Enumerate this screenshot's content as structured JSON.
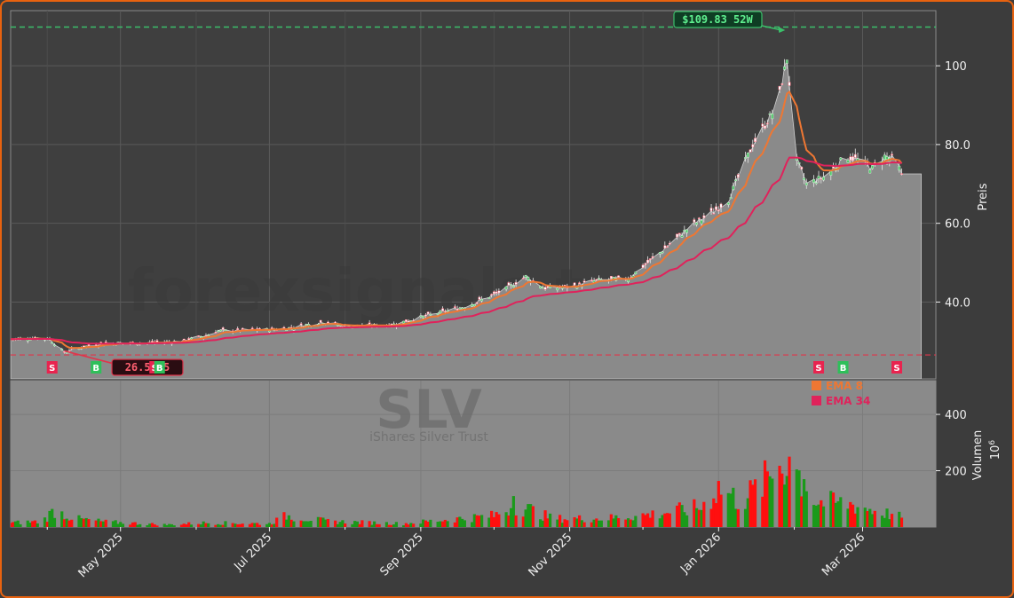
{
  "chart_data": {
    "type": "candlestick-with-volume",
    "watermark": {
      "brand": "forexsignals.trade",
      "ticker": "SLV",
      "name": "iShares Silver Trust"
    },
    "price_axis": {
      "label": "Preis",
      "ylim": [
        20.5,
        114
      ],
      "ticks": [
        40,
        60,
        80,
        100
      ],
      "tick_labels": [
        "40.0",
        "60.0",
        "80.0",
        "100"
      ]
    },
    "volume_axis": {
      "label": "Volumen",
      "unit_exponent": "10",
      "unit_power": "6",
      "ylim": [
        0,
        520
      ],
      "ticks": [
        200,
        400
      ],
      "tick_labels": [
        "200",
        "400"
      ]
    },
    "x_axis": {
      "start": "2025-03-17",
      "end": "2026-03-31",
      "tick_dates": [
        "2025-05-01",
        "2025-07-01",
        "2025-09-01",
        "2025-11-01",
        "2026-01-01",
        "2026-03-01"
      ],
      "tick_labels": [
        "May 2025",
        "Jul 2025",
        "Sep 2025",
        "Nov 2025",
        "Jan 2026",
        "Mar 2026"
      ]
    },
    "grid": true,
    "legend": {
      "position": "top-center",
      "items": [
        {
          "name": "EMA 8",
          "color": "#ee7733"
        },
        {
          "name": "EMA 34",
          "color": "#e0225b"
        }
      ]
    },
    "high_line": {
      "value": 109.83,
      "label": "$109.83 52W",
      "date": "2026-01-29",
      "color": "#3bbf6a"
    },
    "low_line": {
      "value": 26.57,
      "label": "26.57 5",
      "date": "2025-04-08",
      "color": "#e0354b"
    },
    "signals": [
      {
        "type": "S",
        "date": "2025-04-03"
      },
      {
        "type": "B",
        "date": "2025-04-21"
      },
      {
        "type": "S",
        "date": "2025-05-15"
      },
      {
        "type": "B",
        "date": "2025-05-17"
      },
      {
        "type": "S",
        "date": "2026-02-11"
      },
      {
        "type": "B",
        "date": "2026-02-21"
      },
      {
        "type": "S",
        "date": "2026-03-15"
      }
    ],
    "price_anchors": [
      [
        "2025-03-17",
        30.6
      ],
      [
        "2025-03-28",
        30.9
      ],
      [
        "2025-04-02",
        30.6
      ],
      [
        "2025-04-08",
        27.2
      ],
      [
        "2025-04-15",
        28.6
      ],
      [
        "2025-04-25",
        29.6
      ],
      [
        "2025-05-10",
        29.6
      ],
      [
        "2025-05-25",
        30.0
      ],
      [
        "2025-06-05",
        31.5
      ],
      [
        "2025-06-10",
        32.7
      ],
      [
        "2025-06-30",
        33.0
      ],
      [
        "2025-07-10",
        33.5
      ],
      [
        "2025-07-23",
        35.0
      ],
      [
        "2025-08-01",
        33.9
      ],
      [
        "2025-08-20",
        34.2
      ],
      [
        "2025-08-31",
        36.0
      ],
      [
        "2025-09-20",
        39.0
      ],
      [
        "2025-10-05",
        43.0
      ],
      [
        "2025-10-14",
        46.5
      ],
      [
        "2025-10-22",
        43.5
      ],
      [
        "2025-11-01",
        43.8
      ],
      [
        "2025-11-12",
        45.5
      ],
      [
        "2025-11-25",
        46.0
      ],
      [
        "2025-12-05",
        51.0
      ],
      [
        "2025-12-20",
        59.0
      ],
      [
        "2025-12-30",
        63.0
      ],
      [
        "2026-01-05",
        66.0
      ],
      [
        "2026-01-15",
        80.0
      ],
      [
        "2026-01-25",
        90.0
      ],
      [
        "2026-01-29",
        102.0
      ],
      [
        "2026-02-02",
        76.0
      ],
      [
        "2026-02-06",
        70.0
      ],
      [
        "2026-02-14",
        72.0
      ],
      [
        "2026-02-22",
        77.0
      ],
      [
        "2026-02-28",
        76.0
      ],
      [
        "2026-03-05",
        74.0
      ],
      [
        "2026-03-10",
        77.0
      ],
      [
        "2026-03-15",
        76.0
      ],
      [
        "2026-03-17",
        72.0
      ]
    ],
    "volume_anchors": [
      [
        "2025-03-17",
        15
      ],
      [
        "2025-03-30",
        20
      ],
      [
        "2025-04-04",
        60
      ],
      [
        "2025-04-12",
        30
      ],
      [
        "2025-04-25",
        18
      ],
      [
        "2025-05-20",
        8
      ],
      [
        "2025-06-05",
        15
      ],
      [
        "2025-07-01",
        12
      ],
      [
        "2025-07-08",
        40
      ],
      [
        "2025-07-25",
        20
      ],
      [
        "2025-08-25",
        12
      ],
      [
        "2025-09-10",
        25
      ],
      [
        "2025-10-01",
        40
      ],
      [
        "2025-10-10",
        80
      ],
      [
        "2025-10-25",
        30
      ],
      [
        "2025-11-15",
        30
      ],
      [
        "2025-12-05",
        45
      ],
      [
        "2025-12-25",
        70
      ],
      [
        "2026-01-01",
        140
      ],
      [
        "2026-01-10",
        90
      ],
      [
        "2026-01-20",
        160
      ],
      [
        "2026-01-27",
        250
      ],
      [
        "2026-02-02",
        200
      ],
      [
        "2026-02-10",
        90
      ],
      [
        "2026-02-25",
        80
      ],
      [
        "2026-03-05",
        60
      ],
      [
        "2026-03-17",
        35
      ]
    ],
    "volume_spikes": [
      [
        "2025-04-05",
        70
      ],
      [
        "2025-10-09",
        110
      ],
      [
        "2025-10-18",
        80
      ],
      [
        "2026-01-24",
        400
      ],
      [
        "2026-01-27",
        190
      ],
      [
        "2026-01-30",
        250
      ],
      [
        "2026-02-01",
        495
      ],
      [
        "2026-02-05",
        170
      ],
      [
        "2026-02-15",
        130
      ]
    ]
  }
}
